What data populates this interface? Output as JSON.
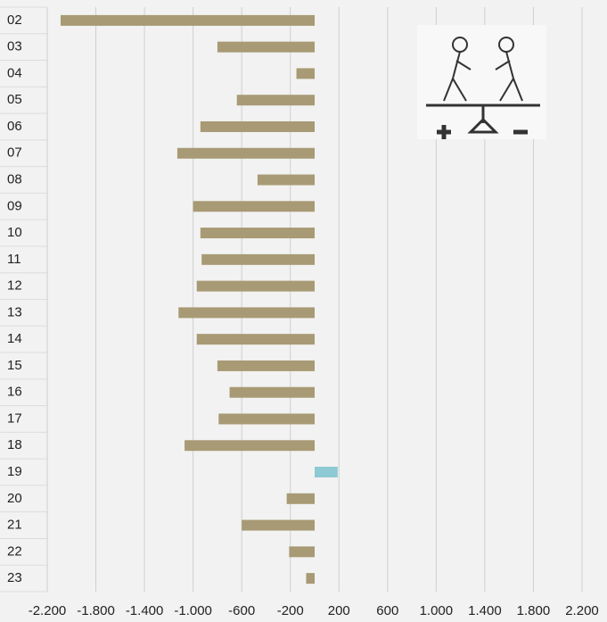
{
  "chart_data": {
    "type": "bar",
    "orientation": "horizontal",
    "categories": [
      "02",
      "03",
      "04",
      "05",
      "06",
      "07",
      "08",
      "09",
      "10",
      "11",
      "12",
      "13",
      "14",
      "15",
      "16",
      "17",
      "18",
      "19",
      "20",
      "21",
      "22",
      "23"
    ],
    "values": [
      -2090,
      -800,
      -150,
      -640,
      -940,
      -1130,
      -470,
      -1000,
      -940,
      -930,
      -970,
      -1120,
      -970,
      -800,
      -700,
      -790,
      -1070,
      190,
      -230,
      -600,
      -210,
      -70
    ],
    "colors": [
      "#a89a74",
      "#a89a74",
      "#a89a74",
      "#a89a74",
      "#a89a74",
      "#a89a74",
      "#a89a74",
      "#a89a74",
      "#a89a74",
      "#a89a74",
      "#a89a74",
      "#a89a74",
      "#a89a74",
      "#a89a74",
      "#a89a74",
      "#a89a74",
      "#a89a74",
      "#8ecad4",
      "#a89a74",
      "#a89a74",
      "#a89a74",
      "#a89a74"
    ],
    "xlim": [
      -2200,
      2200
    ],
    "xticks": [
      {
        "value": -2200,
        "label": "-2.200"
      },
      {
        "value": -1800,
        "label": "-1.800"
      },
      {
        "value": -1400,
        "label": "-1.400"
      },
      {
        "value": -1000,
        "label": "-1.000"
      },
      -600,
      -200,
      200,
      600,
      {
        "value": 1000,
        "label": "1.000"
      },
      {
        "value": 1400,
        "label": "1.400"
      },
      {
        "value": 1800,
        "label": "1.800"
      },
      {
        "value": 2200,
        "label": "2.200"
      }
    ],
    "grid": true
  }
}
